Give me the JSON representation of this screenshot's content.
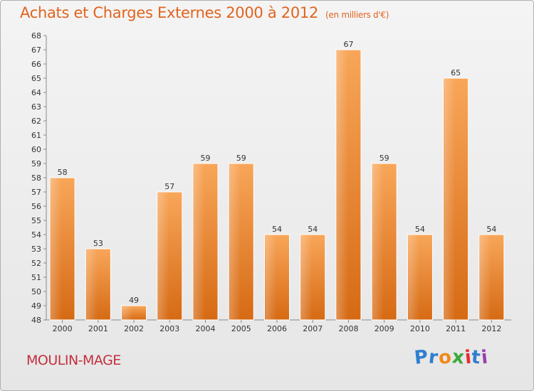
{
  "chart_data": {
    "type": "bar",
    "title": "Achats et Charges Externes 2000 à 2012",
    "unit_label": "(en milliers d'€)",
    "categories": [
      "2000",
      "2001",
      "2002",
      "2003",
      "2004",
      "2005",
      "2006",
      "2007",
      "2008",
      "2009",
      "2010",
      "2011",
      "2012"
    ],
    "values": [
      58,
      53,
      49,
      57,
      59,
      59,
      54,
      54,
      67,
      59,
      54,
      65,
      54
    ],
    "xlabel": "",
    "ylabel": "",
    "ylim": [
      48,
      68
    ],
    "ytick_step": 1,
    "grid": false,
    "bar_color": "#f08a30"
  },
  "footer": {
    "commune": "MOULIN-MAGE",
    "logo_letters": [
      {
        "ch": "P",
        "color": "#2f7fd0"
      },
      {
        "ch": "r",
        "color": "#2f7fd0"
      },
      {
        "ch": "o",
        "color": "#f08a1c"
      },
      {
        "ch": "x",
        "color": "#3aa83a"
      },
      {
        "ch": "i",
        "color": "#e03030"
      },
      {
        "ch": "t",
        "color": "#2f7fd0"
      },
      {
        "ch": "i",
        "color": "#9a3fb0"
      }
    ]
  }
}
